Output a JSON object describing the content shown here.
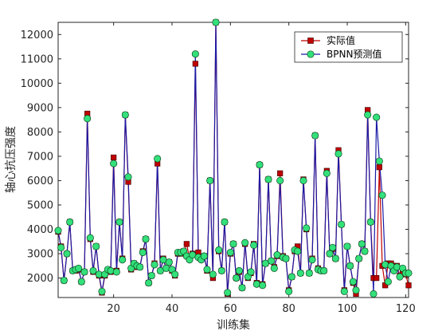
{
  "chart_data": {
    "type": "line",
    "title": "",
    "xlabel": "训练集",
    "ylabel": "轴心抗压强度",
    "xlim": [
      1,
      121
    ],
    "ylim": [
      1200,
      12500
    ],
    "xticks": [
      20,
      40,
      60,
      80,
      100,
      120
    ],
    "yticks": [
      2000,
      3000,
      4000,
      5000,
      6000,
      7000,
      8000,
      9000,
      10000,
      11000,
      12000
    ],
    "grid": false,
    "legend_position": "top-right",
    "x": [
      1,
      2,
      3,
      4,
      5,
      6,
      7,
      8,
      9,
      10,
      11,
      12,
      13,
      14,
      15,
      16,
      17,
      18,
      19,
      20,
      21,
      22,
      23,
      24,
      25,
      26,
      27,
      28,
      29,
      30,
      31,
      32,
      33,
      34,
      35,
      36,
      37,
      38,
      39,
      40,
      41,
      42,
      43,
      44,
      45,
      46,
      47,
      48,
      49,
      50,
      51,
      52,
      53,
      54,
      55,
      56,
      57,
      58,
      59,
      60,
      61,
      62,
      63,
      64,
      65,
      66,
      67,
      68,
      69,
      70,
      71,
      72,
      73,
      74,
      75,
      76,
      77,
      78,
      79,
      80,
      81,
      82,
      83,
      84,
      85,
      86,
      87,
      88,
      89,
      90,
      91,
      92,
      93,
      94,
      95,
      96,
      97,
      98,
      99,
      100,
      101,
      102,
      103,
      104,
      105,
      106,
      107,
      108,
      109,
      110,
      111,
      112,
      113,
      114,
      115,
      116,
      117,
      118,
      119,
      120,
      121
    ],
    "series": [
      {
        "name": "实际值",
        "marker": "square",
        "marker_color": "#c00000",
        "line_color": "#c00000",
        "values": [
          3900,
          3300,
          1900,
          3000,
          4300,
          2300,
          2300,
          2350,
          1850,
          2250,
          8750,
          3600,
          2250,
          3300,
          2100,
          1400,
          2100,
          2300,
          2250,
          6950,
          2300,
          4300,
          2800,
          8700,
          5950,
          2350,
          2600,
          2450,
          2450,
          3100,
          3600,
          1800,
          2100,
          2600,
          6700,
          2300,
          2800,
          2400,
          2650,
          2300,
          2100,
          3000,
          3000,
          3100,
          3400,
          2800,
          3000,
          10800,
          3050,
          2800,
          2900,
          2300,
          6000,
          2000,
          12500,
          3100,
          2300,
          4300,
          1350,
          3000,
          3400,
          2000,
          2250,
          1600,
          3400,
          2000,
          2200,
          3400,
          1800,
          6650,
          1750,
          2600,
          6050,
          2700,
          2450,
          2900,
          6300,
          2900,
          2800,
          1500,
          2050,
          3100,
          3300,
          2200,
          6050,
          4000,
          2200,
          2800,
          7850,
          2400,
          2300,
          2300,
          6400,
          3000,
          3200,
          2800,
          7250,
          4200,
          1500,
          3300,
          2500,
          1800,
          1350,
          2800,
          3400,
          3100,
          8900,
          4300,
          2000,
          2000,
          6550,
          2500,
          1700,
          2600,
          2600,
          2500,
          2500,
          2100,
          2200,
          2150,
          1700
        ],
        "values_note": ""
      },
      {
        "name": "BPNN预测值",
        "marker": "circle",
        "marker_color": "#33e07a",
        "line_color": "#1a1aa6",
        "values": [
          3950,
          3250,
          1900,
          3000,
          4300,
          2300,
          2350,
          2400,
          1850,
          2250,
          8550,
          3650,
          2300,
          3300,
          2150,
          1450,
          2150,
          2350,
          2300,
          6700,
          2250,
          4300,
          2750,
          8700,
          6150,
          2400,
          2600,
          2500,
          2450,
          3050,
          3600,
          1800,
          2100,
          2550,
          6900,
          2300,
          2750,
          2400,
          2650,
          2350,
          2150,
          3050,
          3050,
          3100,
          2900,
          2750,
          2950,
          11200,
          2850,
          2750,
          2900,
          2350,
          6000,
          2150,
          12500,
          3150,
          2300,
          4300,
          1400,
          3050,
          3400,
          2000,
          2300,
          1600,
          3450,
          2050,
          2250,
          3350,
          1750,
          6650,
          1700,
          2600,
          6050,
          2700,
          2400,
          2950,
          6000,
          2850,
          2800,
          1450,
          2050,
          3150,
          3100,
          2200,
          6000,
          4050,
          2200,
          2750,
          7850,
          2350,
          2300,
          2300,
          6300,
          3000,
          3250,
          2800,
          7100,
          4200,
          1450,
          3300,
          2500,
          1850,
          1500,
          2800,
          3400,
          3100,
          8700,
          4300,
          1350,
          8600,
          6800,
          5400,
          2550,
          1850,
          2500,
          2300,
          2450,
          2050,
          2400,
          2200,
          2200
        ],
        "values_note": ""
      }
    ]
  },
  "colors": {
    "background": "#ffffff",
    "axes": "#262626"
  }
}
